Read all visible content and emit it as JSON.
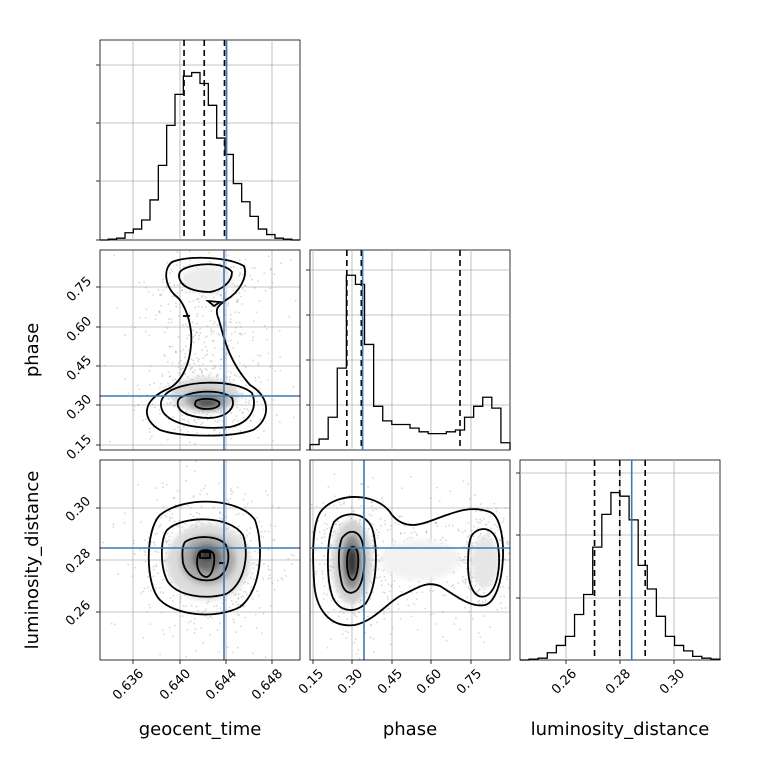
{
  "chart_data": {
    "type": "corner",
    "parameters": [
      "geocent_time",
      "phase",
      "luminosity_distance"
    ],
    "axis_labels": {
      "geocent_time": "geocent_time",
      "phase": "phase",
      "luminosity_distance": "luminosity_distance"
    },
    "ranges": {
      "geocent_time": [
        0.6324,
        0.6512
      ],
      "phase": [
        0.14,
        0.9
      ],
      "luminosity_distance": [
        0.2415,
        0.3185
      ]
    },
    "ticks": {
      "geocent_time": [
        "0.636",
        "0.640",
        "0.644",
        "0.648"
      ],
      "phase": [
        "0.15",
        "0.30",
        "0.45",
        "0.60",
        "0.75"
      ],
      "luminosity_distance": [
        "0.26",
        "0.28",
        "0.30"
      ]
    },
    "truths": {
      "geocent_time": 0.6443,
      "phase": 0.34,
      "luminosity_distance": 0.2845
    },
    "quantiles": {
      "geocent_time": [
        0.6403,
        0.6422,
        0.6441
      ],
      "phase": [
        0.28,
        0.335,
        0.71
      ],
      "luminosity_distance": [
        0.2702,
        0.2799,
        0.2897
      ]
    },
    "histograms": {
      "geocent_time": {
        "edges": [
          0.6324,
          0.6512
        ],
        "counts": [
          0.0,
          0.005,
          0.01,
          0.04,
          0.06,
          0.11,
          0.22,
          0.41,
          0.63,
          0.8,
          0.9,
          0.92,
          0.86,
          0.74,
          0.56,
          0.47,
          0.31,
          0.21,
          0.13,
          0.06,
          0.03,
          0.01,
          0.005,
          0.0
        ]
      },
      "phase": {
        "edges": [
          0.14,
          0.9
        ],
        "counts": [
          0.03,
          0.06,
          0.18,
          0.45,
          0.96,
          0.91,
          0.58,
          0.24,
          0.16,
          0.14,
          0.14,
          0.12,
          0.1,
          0.09,
          0.09,
          0.1,
          0.11,
          0.18,
          0.24,
          0.29,
          0.23,
          0.04
        ]
      },
      "luminosity_distance": {
        "edges": [
          0.2415,
          0.3185
        ],
        "counts": [
          0.0,
          0.005,
          0.01,
          0.04,
          0.08,
          0.13,
          0.25,
          0.36,
          0.62,
          0.8,
          0.92,
          0.9,
          0.77,
          0.52,
          0.39,
          0.24,
          0.13,
          0.08,
          0.05,
          0.02,
          0.01,
          0.005
        ]
      }
    },
    "joint": [
      {
        "x": "geocent_time",
        "y": "phase",
        "peak": [
          0.6422,
          0.305
        ],
        "secondary_peak": [
          0.6422,
          0.76
        ]
      },
      {
        "x": "geocent_time",
        "y": "luminosity_distance",
        "peak": [
          0.6422,
          0.28
        ]
      },
      {
        "x": "phase",
        "y": "luminosity_distance",
        "peak": [
          0.3,
          0.28
        ],
        "secondary_peak": [
          0.8,
          0.28
        ]
      }
    ],
    "grid": true,
    "legend": "none"
  }
}
